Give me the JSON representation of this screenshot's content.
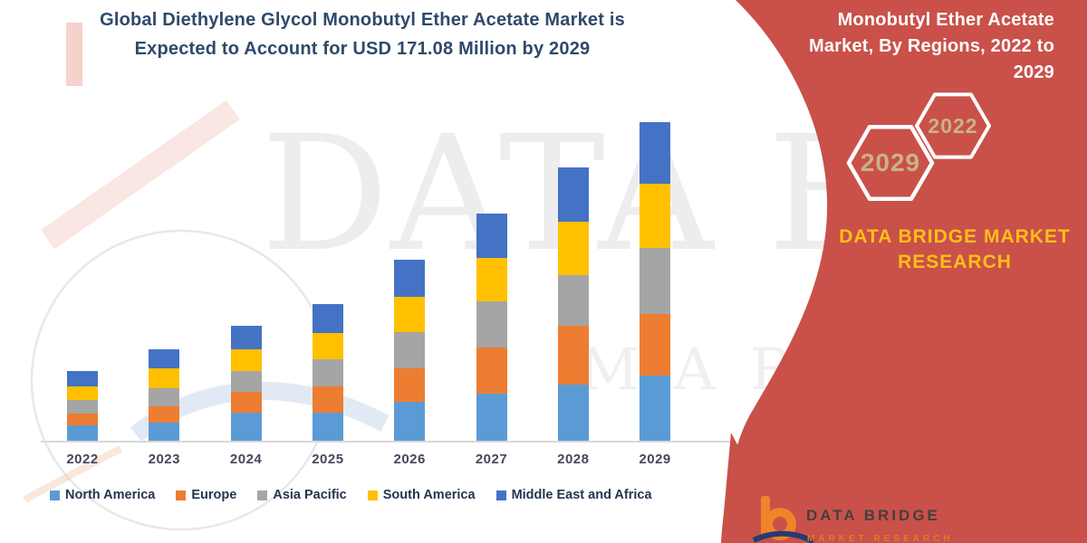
{
  "header": {
    "title_line1": "Global Diethylene Glycol Monobutyl Ether Acetate Market is",
    "title_line2": "Expected to Account for USD 171.08 Million by 2029",
    "title_color": "#2E4A6B"
  },
  "side_panel": {
    "background_color": "#C9514A",
    "title": "Monobutyl Ether Acetate Market, By Regions, 2022 to 2029",
    "hexagons": [
      {
        "label": "2029"
      },
      {
        "label": "2022"
      }
    ],
    "hexagon_label_color": "#C8B485",
    "brand_line1": "DATA BRIDGE MARKET",
    "brand_line2": "RESEARCH",
    "brand_color": "#FDBE17"
  },
  "watermark": {
    "line1": "DATA BRIDGE",
    "line2": "MARKET RESEARCH"
  },
  "footer_logo": {
    "name": "DATA BRIDGE",
    "sub": "MARKET RESEARCH",
    "b_color": "#F08428",
    "swoosh_color": "#263A73"
  },
  "chart_data": {
    "type": "bar",
    "stacked": true,
    "unit": "USD Million",
    "title": "Global Diethylene Glycol Monobutyl Ether Acetate Market, By Regions, 2022 to 2029",
    "xlabel": "",
    "ylabel": "",
    "axis_visible": false,
    "grid": false,
    "legend_position": "bottom",
    "categories": [
      "2022",
      "2023",
      "2024",
      "2025",
      "2026",
      "2027",
      "2028",
      "2029"
    ],
    "series": [
      {
        "name": "North America",
        "color": "#5B9BD5",
        "values": [
          8.3,
          9.9,
          14.9,
          14.9,
          21.1,
          25.1,
          30.0,
          35.0
        ]
      },
      {
        "name": "Europe",
        "color": "#ED7D31",
        "values": [
          6.5,
          8.9,
          11.0,
          14.2,
          18.1,
          24.6,
          31.6,
          33.2
        ]
      },
      {
        "name": "Asia Pacific",
        "color": "#A5A5A5",
        "values": [
          7.3,
          9.7,
          11.0,
          14.6,
          19.4,
          24.8,
          27.1,
          35.3
        ]
      },
      {
        "name": "South America",
        "color": "#FFC000",
        "values": [
          7.3,
          10.5,
          11.7,
          14.3,
          19.1,
          23.5,
          28.5,
          34.4
        ]
      },
      {
        "name": "Middle East and Africa",
        "color": "#4472C4",
        "values": [
          8.1,
          10.2,
          12.6,
          15.7,
          19.8,
          24.0,
          29.2,
          33.18
        ]
      }
    ],
    "totals_estimated": [
      37.5,
      49.2,
      61.2,
      73.7,
      97.5,
      122.0,
      146.4,
      171.08
    ],
    "stated_value_2029": 171.08
  }
}
